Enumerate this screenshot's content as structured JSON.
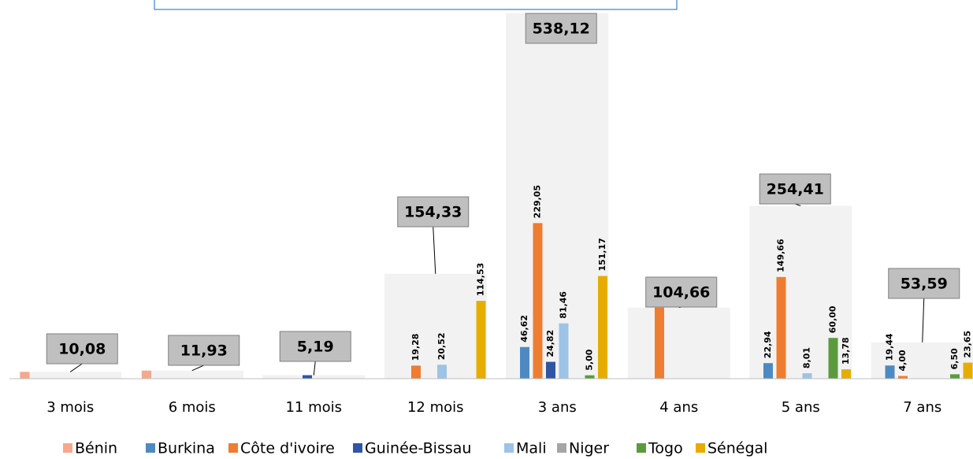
{
  "chart_data": {
    "type": "bar",
    "categories": [
      "3 mois",
      "6 mois",
      "11 mois",
      "12 mois",
      "3 ans",
      "4 ans",
      "5 ans",
      "7 ans"
    ],
    "totals": [
      10.08,
      11.93,
      5.19,
      154.33,
      538.12,
      104.66,
      254.41,
      53.59
    ],
    "total_labels": [
      "10,08",
      "11,93",
      "5,19",
      "154,33",
      "538,12",
      "104,66",
      "254,41",
      "53,59"
    ],
    "total_color": "#f2f2f2",
    "ylim": [
      0,
      540
    ],
    "series": [
      {
        "name": "Bénin",
        "color": "#f4a98d",
        "values": [
          10.08,
          11.93,
          null,
          null,
          null,
          null,
          null,
          null
        ],
        "value_labels": [
          null,
          null,
          null,
          null,
          null,
          null,
          null,
          null
        ]
      },
      {
        "name": "Burkina",
        "color": "#4e8ac2",
        "values": [
          null,
          null,
          null,
          null,
          46.62,
          null,
          22.94,
          19.44
        ],
        "value_labels": [
          null,
          null,
          null,
          null,
          "46,62",
          null,
          "22,94",
          "19,44"
        ]
      },
      {
        "name": "Côte d'ivoire",
        "color": "#ee7d31",
        "values": [
          null,
          null,
          null,
          19.28,
          229.05,
          104.66,
          149.66,
          4.0
        ],
        "value_labels": [
          null,
          null,
          null,
          "19,28",
          "229,05",
          null,
          "149,66",
          "4,00"
        ]
      },
      {
        "name": "Guinée-Bissau",
        "color": "#2f55a4",
        "values": [
          null,
          null,
          5.19,
          null,
          24.82,
          null,
          null,
          null
        ],
        "value_labels": [
          null,
          null,
          null,
          null,
          "24,82",
          null,
          null,
          null
        ]
      },
      {
        "name": "Mali",
        "color": "#9dc3e6",
        "values": [
          null,
          null,
          null,
          20.52,
          81.46,
          null,
          8.01,
          null
        ],
        "value_labels": [
          null,
          null,
          null,
          "20,52",
          "81,46",
          null,
          "8,01",
          null
        ]
      },
      {
        "name": "Niger",
        "color": "#a5a5a5",
        "values": [
          null,
          null,
          null,
          null,
          null,
          null,
          null,
          null
        ],
        "value_labels": [
          null,
          null,
          null,
          null,
          null,
          null,
          null,
          null
        ]
      },
      {
        "name": "Togo",
        "color": "#5b9b3d",
        "values": [
          null,
          null,
          null,
          null,
          5.0,
          null,
          60.0,
          6.5
        ],
        "value_labels": [
          null,
          null,
          null,
          null,
          "5,00",
          null,
          "60,00",
          "6,50"
        ]
      },
      {
        "name": "Sénégal",
        "color": "#e6ad00",
        "values": [
          null,
          null,
          null,
          114.53,
          151.17,
          null,
          13.78,
          23.65
        ],
        "value_labels": [
          null,
          null,
          null,
          "114,53",
          "151,17",
          null,
          "13,78",
          "23,65"
        ]
      }
    ]
  }
}
